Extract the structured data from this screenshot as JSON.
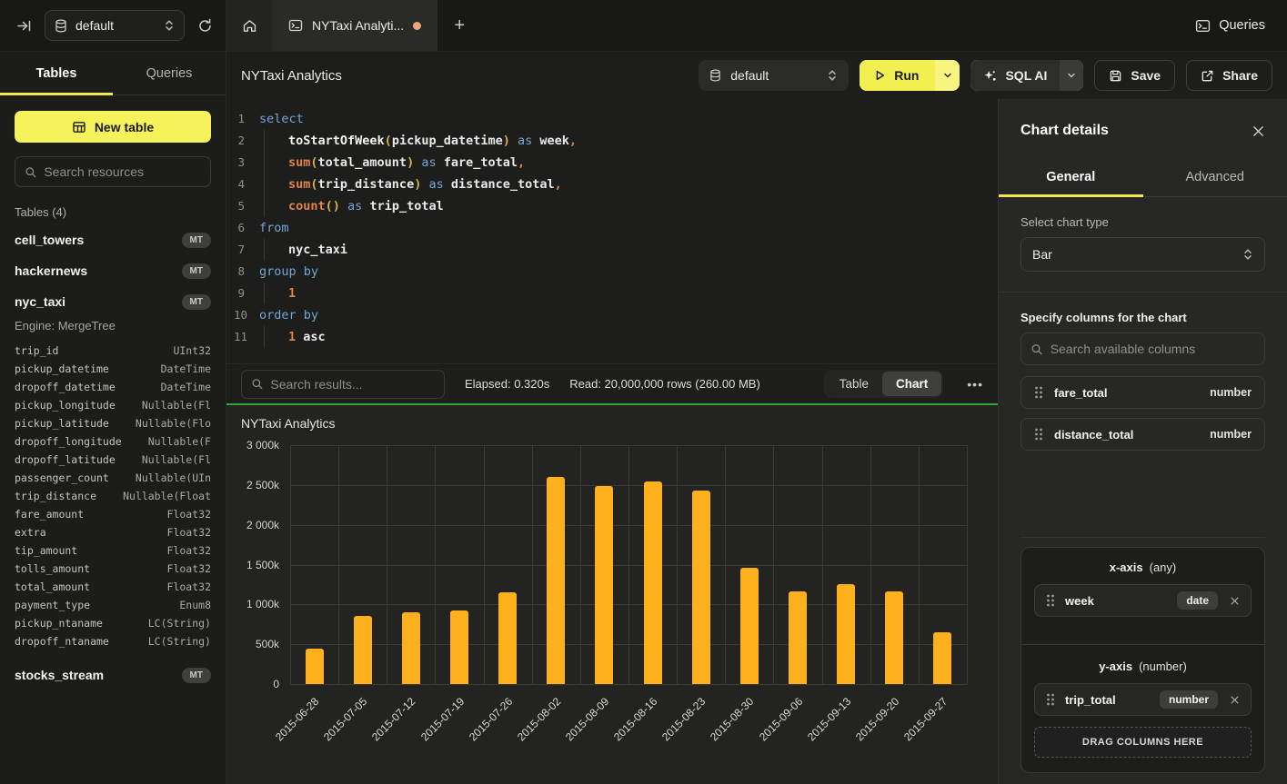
{
  "topbar": {
    "database_selector": "default",
    "tab_title": "NYTaxi Analyti...",
    "queries_label": "Queries"
  },
  "sidebar": {
    "tabs": [
      "Tables",
      "Queries"
    ],
    "new_table_label": "New table",
    "search_placeholder": "Search resources",
    "section_header": "Tables (4)",
    "tables": [
      {
        "name": "cell_towers",
        "badge": "MT",
        "expanded": false
      },
      {
        "name": "hackernews",
        "badge": "MT",
        "expanded": false
      },
      {
        "name": "nyc_taxi",
        "badge": "MT",
        "expanded": true,
        "engine": "Engine: MergeTree",
        "columns": [
          [
            "trip_id",
            "UInt32"
          ],
          [
            "pickup_datetime",
            "DateTime"
          ],
          [
            "dropoff_datetime",
            "DateTime"
          ],
          [
            "pickup_longitude",
            "Nullable(Fl"
          ],
          [
            "pickup_latitude",
            "Nullable(Flo"
          ],
          [
            "dropoff_longitude",
            "Nullable(F"
          ],
          [
            "dropoff_latitude",
            "Nullable(Fl"
          ],
          [
            "passenger_count",
            "Nullable(UIn"
          ],
          [
            "trip_distance",
            "Nullable(Float"
          ],
          [
            "fare_amount",
            "Float32"
          ],
          [
            "extra",
            "Float32"
          ],
          [
            "tip_amount",
            "Float32"
          ],
          [
            "tolls_amount",
            "Float32"
          ],
          [
            "total_amount",
            "Float32"
          ],
          [
            "payment_type",
            "Enum8"
          ],
          [
            "pickup_ntaname",
            "LC(String)"
          ],
          [
            "dropoff_ntaname",
            "LC(String)"
          ]
        ]
      },
      {
        "name": "stocks_stream",
        "badge": "MT",
        "expanded": false
      }
    ]
  },
  "toolbar": {
    "title": "NYTaxi Analytics",
    "database_selector": "default",
    "run_label": "Run",
    "sql_ai_label": "SQL AI",
    "save_label": "Save",
    "share_label": "Share"
  },
  "editor": {
    "lines": [
      {
        "n": "1",
        "ind": false,
        "seg": [
          [
            "select",
            "kw"
          ]
        ]
      },
      {
        "n": "2",
        "ind": true,
        "seg": [
          [
            "toStartOfWeek",
            "fnw"
          ],
          [
            "(",
            "par"
          ],
          [
            "pickup_datetime",
            "pl"
          ],
          [
            ")",
            "par"
          ],
          [
            " ",
            "pl"
          ],
          [
            "as",
            "kw"
          ],
          [
            " week",
            "pl"
          ],
          [
            ",",
            "fno"
          ]
        ]
      },
      {
        "n": "3",
        "ind": true,
        "seg": [
          [
            "sum",
            "fno"
          ],
          [
            "(",
            "par"
          ],
          [
            "total_amount",
            "pl"
          ],
          [
            ")",
            "par"
          ],
          [
            " ",
            "pl"
          ],
          [
            "as",
            "kw"
          ],
          [
            " fare_total",
            "pl"
          ],
          [
            ",",
            "fno"
          ]
        ]
      },
      {
        "n": "4",
        "ind": true,
        "seg": [
          [
            "sum",
            "fno"
          ],
          [
            "(",
            "par"
          ],
          [
            "trip_distance",
            "pl"
          ],
          [
            ")",
            "par"
          ],
          [
            " ",
            "pl"
          ],
          [
            "as",
            "kw"
          ],
          [
            " distance_total",
            "pl"
          ],
          [
            ",",
            "fno"
          ]
        ]
      },
      {
        "n": "5",
        "ind": true,
        "seg": [
          [
            "count",
            "fno"
          ],
          [
            "()",
            "par"
          ],
          [
            " ",
            "pl"
          ],
          [
            "as",
            "kw"
          ],
          [
            " trip_total",
            "pl"
          ]
        ]
      },
      {
        "n": "6",
        "ind": false,
        "seg": [
          [
            "from",
            "kw"
          ]
        ]
      },
      {
        "n": "7",
        "ind": true,
        "seg": [
          [
            "nyc_taxi",
            "pl"
          ]
        ]
      },
      {
        "n": "8",
        "ind": false,
        "seg": [
          [
            "group by",
            "kw"
          ]
        ]
      },
      {
        "n": "9",
        "ind": true,
        "seg": [
          [
            "1",
            "fno"
          ]
        ]
      },
      {
        "n": "10",
        "ind": false,
        "seg": [
          [
            "order by",
            "kw"
          ]
        ]
      },
      {
        "n": "11",
        "ind": true,
        "seg": [
          [
            "1",
            "fno"
          ],
          [
            " ",
            "pl"
          ],
          [
            "asc",
            "pl"
          ]
        ]
      }
    ]
  },
  "results_bar": {
    "search_placeholder": "Search results...",
    "elapsed": "Elapsed: 0.320s",
    "read": "Read: 20,000,000 rows (260.00 MB)",
    "view_toggle": [
      "Table",
      "Chart"
    ],
    "active_view": "Chart",
    "more_label": "•••"
  },
  "chart_data": {
    "type": "bar",
    "title": "NYTaxi Analytics",
    "series_name": "trip_total",
    "categories": [
      "2015-06-28",
      "2015-07-05",
      "2015-07-12",
      "2015-07-19",
      "2015-07-26",
      "2015-08-02",
      "2015-08-09",
      "2015-08-16",
      "2015-08-23",
      "2015-08-30",
      "2015-09-06",
      "2015-09-13",
      "2015-09-20",
      "2015-09-27"
    ],
    "values": [
      450000,
      855000,
      900000,
      925000,
      1150000,
      2600000,
      2490000,
      2545000,
      2430000,
      1455000,
      1160000,
      1255000,
      1160000,
      650000
    ],
    "xlabel": "",
    "ylabel": "",
    "ylim": [
      0,
      3000000
    ],
    "ytick_labels": [
      "3 000k",
      "2 500k",
      "2 000k",
      "1 500k",
      "1 000k",
      "500k",
      "0"
    ],
    "grid": true,
    "legend_position": "none",
    "bar_color": "#FFB11D"
  },
  "chart_panel": {
    "title": "Chart details",
    "tabs": [
      "General",
      "Advanced"
    ],
    "active_tab": "General",
    "chart_type_label": "Select chart type",
    "chart_type_value": "Bar",
    "columns_label": "Specify columns for the chart",
    "columns_search_placeholder": "Search available columns",
    "available_columns": [
      {
        "name": "fare_total",
        "type": "number"
      },
      {
        "name": "distance_total",
        "type": "number"
      }
    ],
    "x_axis": {
      "label": "x-axis",
      "hint": "(any)",
      "chips": [
        {
          "name": "week",
          "type": "date"
        }
      ]
    },
    "y_axis": {
      "label": "y-axis",
      "hint": "(number)",
      "chips": [
        {
          "name": "trip_total",
          "type": "number"
        }
      ]
    },
    "drop_zone_label": "DRAG COLUMNS HERE"
  },
  "colors": {
    "accent_yellow": "#F3F056",
    "bar_orange": "#FFB11D",
    "result_success_green": "#35A335",
    "unsaved_dot_orange": "#EFA479"
  }
}
